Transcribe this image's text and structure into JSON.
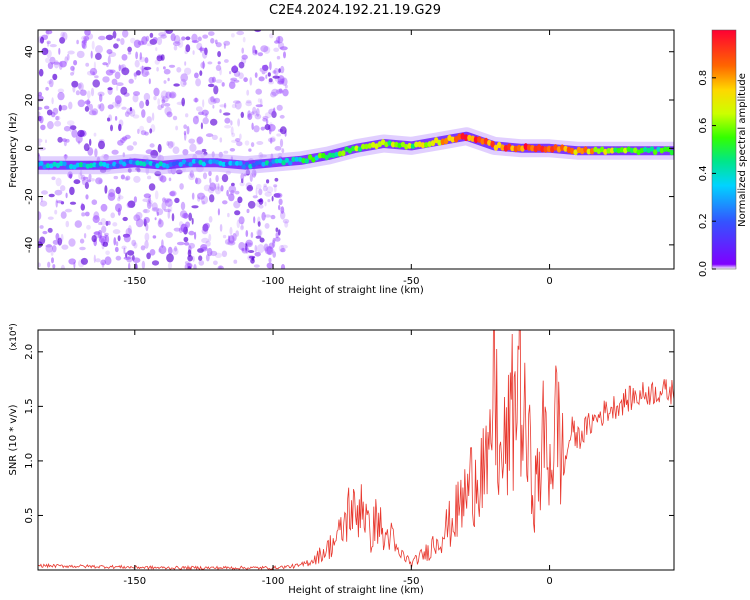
{
  "figure_title": "C2E4.2024.192.21.19.G29",
  "chart_data": [
    {
      "type": "heatmap",
      "title": "",
      "xlabel": "Height of straight line (km)",
      "ylabel": "Frequency (Hz)",
      "xlim": [
        -185,
        45
      ],
      "ylim": [
        -50,
        49
      ],
      "xticks": [
        -150,
        -100,
        -50,
        0
      ],
      "yticks": [
        -40,
        -20,
        0,
        20,
        40
      ],
      "colorbar": {
        "label": "Normalized spectral amplitude",
        "range": [
          0,
          1
        ],
        "ticks": [
          0.0,
          0.2,
          0.4,
          0.6,
          0.8
        ],
        "colormap": [
          "#7f00ff",
          "#3355ff",
          "#00d4ff",
          "#00e68a",
          "#33ff00",
          "#ccff00",
          "#ffd700",
          "#ff6600",
          "#ff0033"
        ]
      },
      "noise_region": {
        "x_range": [
          -185,
          -95
        ],
        "freq_range": [
          -50,
          49
        ],
        "amplitude": 0.1
      },
      "ridge": {
        "x": [
          -185,
          -170,
          -160,
          -150,
          -140,
          -130,
          -120,
          -110,
          -100,
          -90,
          -80,
          -70,
          -60,
          -50,
          -40,
          -30,
          -20,
          -10,
          0,
          10,
          20,
          30,
          45
        ],
        "freq": [
          -7,
          -7,
          -7,
          -6,
          -7,
          -6,
          -6,
          -7,
          -6,
          -5,
          -3,
          0,
          2,
          1,
          3,
          5,
          1,
          0,
          0,
          -1,
          -1,
          -1,
          -1
        ],
        "amplitude": [
          0.3,
          0.35,
          0.3,
          0.3,
          0.3,
          0.3,
          0.3,
          0.3,
          0.35,
          0.45,
          0.5,
          0.55,
          0.6,
          0.55,
          0.7,
          0.9,
          0.8,
          0.9,
          0.95,
          0.8,
          0.65,
          0.5,
          0.45
        ]
      }
    },
    {
      "type": "line",
      "title": "",
      "xlabel": "Height of straight line (km)",
      "ylabel": "SNR (10 * v/v)",
      "y_multiplier": "(x10⁴)",
      "xlim": [
        -185,
        45
      ],
      "ylim": [
        0,
        2.2
      ],
      "xticks": [
        -150,
        -100,
        -50,
        0
      ],
      "yticks": [
        0.5,
        1.0,
        1.5,
        2.0
      ],
      "color": "#e8372d",
      "series": [
        {
          "x": [
            -185,
            -160,
            -140,
            -120,
            -100,
            -90,
            -85,
            -80,
            -75,
            -72,
            -70,
            -68,
            -65,
            -62,
            -60,
            -58,
            -55,
            -52,
            -50,
            -48,
            -45,
            -40,
            -35,
            -30,
            -25,
            -22,
            -20,
            -18,
            -15,
            -12,
            -11,
            -10,
            -8,
            -5,
            -2,
            0,
            3,
            5,
            8,
            10,
            15,
            20,
            25,
            30,
            35,
            40,
            45
          ],
          "y": [
            0.04,
            0.03,
            0.02,
            0.02,
            0.02,
            0.04,
            0.1,
            0.2,
            0.35,
            0.6,
            0.45,
            0.7,
            0.3,
            0.5,
            0.25,
            0.35,
            0.15,
            0.12,
            0.05,
            0.1,
            0.15,
            0.3,
            0.45,
            0.7,
            1.0,
            0.8,
            1.9,
            0.9,
            1.2,
            1.6,
            2.2,
            1.4,
            1.1,
            0.7,
            1.2,
            1.0,
            1.4,
            0.9,
            1.3,
            1.2,
            1.35,
            1.45,
            1.52,
            1.58,
            1.62,
            1.64,
            1.63
          ]
        }
      ]
    }
  ]
}
